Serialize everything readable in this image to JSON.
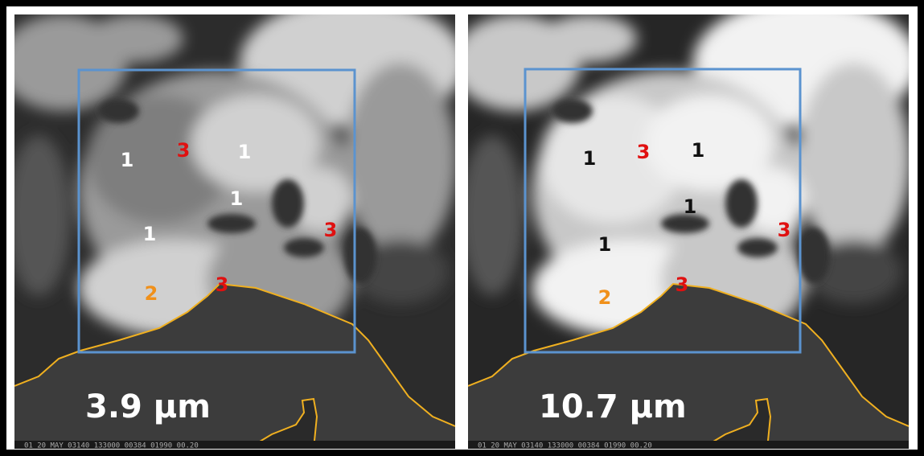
{
  "panels": [
    {
      "caption": "3.9 μm",
      "footer": "01 20 MAY 03140 133000 00384 01990 00.20",
      "labels": [
        {
          "text": "1",
          "color": "#ffffff"
        },
        {
          "text": "3",
          "color": "#e01010"
        },
        {
          "text": "1",
          "color": "#ffffff"
        },
        {
          "text": "1",
          "color": "#ffffff"
        },
        {
          "text": "3",
          "color": "#e01010"
        },
        {
          "text": "1",
          "color": "#ffffff"
        },
        {
          "text": "2",
          "color": "#f0901a"
        },
        {
          "text": "3",
          "color": "#e01010"
        }
      ]
    },
    {
      "caption": "10.7 μm",
      "footer": "01 20 MAY 03140 133000 00384 01990 00.20",
      "labels": [
        {
          "text": "1",
          "color": "#111111"
        },
        {
          "text": "3",
          "color": "#e01010"
        },
        {
          "text": "1",
          "color": "#111111"
        },
        {
          "text": "1",
          "color": "#111111"
        },
        {
          "text": "3",
          "color": "#e01010"
        },
        {
          "text": "1",
          "color": "#111111"
        },
        {
          "text": "2",
          "color": "#f0901a"
        },
        {
          "text": "3",
          "color": "#e01010"
        }
      ]
    }
  ]
}
